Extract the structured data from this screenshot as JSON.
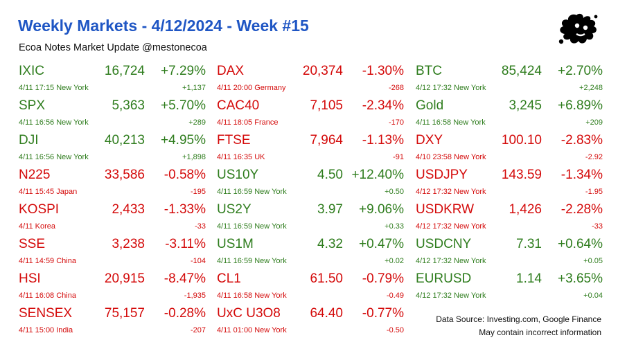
{
  "header": {
    "title": "Weekly Markets - 4/12/2024 - Week #15",
    "subtitle": "Ecoa Notes Market Update @mestonecoa"
  },
  "colors": {
    "up": "#2f7d1e",
    "down": "#d40a0a",
    "title": "#1f56c4"
  },
  "logo": {
    "icon": "ink-splat-icon"
  },
  "columns": [
    [
      {
        "ticker": "IXIC",
        "price": "16,724",
        "pct": "+7.29%",
        "meta": "4/11 17:15 New York",
        "chg": "+1,137",
        "dir": "up"
      },
      {
        "ticker": "SPX",
        "price": "5,363",
        "pct": "+5.70%",
        "meta": "4/11 16:56 New York",
        "chg": "+289",
        "dir": "up"
      },
      {
        "ticker": "DJI",
        "price": "40,213",
        "pct": "+4.95%",
        "meta": "4/11 16:56 New York",
        "chg": "+1,898",
        "dir": "up"
      },
      {
        "ticker": "N225",
        "price": "33,586",
        "pct": "-0.58%",
        "meta": "4/11 15:45 Japan",
        "chg": "-195",
        "dir": "down"
      },
      {
        "ticker": "KOSPI",
        "price": "2,433",
        "pct": "-1.33%",
        "meta": "4/11  Korea",
        "chg": "-33",
        "dir": "down"
      },
      {
        "ticker": "SSE",
        "price": "3,238",
        "pct": "-3.11%",
        "meta": "4/11 14:59 China",
        "chg": "-104",
        "dir": "down"
      },
      {
        "ticker": "HSI",
        "price": "20,915",
        "pct": "-8.47%",
        "meta": "4/11 16:08 China",
        "chg": "-1,935",
        "dir": "down"
      },
      {
        "ticker": "SENSEX",
        "price": "75,157",
        "pct": "-0.28%",
        "meta": "4/11 15:00 India",
        "chg": "-207",
        "dir": "down"
      }
    ],
    [
      {
        "ticker": "DAX",
        "price": "20,374",
        "pct": "-1.30%",
        "meta": "4/11 20:00 Germany",
        "chg": "-268",
        "dir": "down"
      },
      {
        "ticker": "CAC40",
        "price": "7,105",
        "pct": "-2.34%",
        "meta": "4/11 18:05 France",
        "chg": "-170",
        "dir": "down"
      },
      {
        "ticker": "FTSE",
        "price": "7,964",
        "pct": "-1.13%",
        "meta": "4/11 16:35 UK",
        "chg": "-91",
        "dir": "down"
      },
      {
        "ticker": "US10Y",
        "price": "4.50",
        "pct": "+12.40%",
        "meta": "4/11 16:59 New York",
        "chg": "+0.50",
        "dir": "up"
      },
      {
        "ticker": "US2Y",
        "price": "3.97",
        "pct": "+9.06%",
        "meta": "4/11 16:59 New York",
        "chg": "+0.33",
        "dir": "up"
      },
      {
        "ticker": "US1M",
        "price": "4.32",
        "pct": "+0.47%",
        "meta": "4/11 16:59 New York",
        "chg": "+0.02",
        "dir": "up"
      },
      {
        "ticker": "CL1",
        "price": "61.50",
        "pct": "-0.79%",
        "meta": "4/11 16:58 New York",
        "chg": "-0.49",
        "dir": "down"
      },
      {
        "ticker": "UxC U3O8",
        "price": "64.40",
        "pct": "-0.77%",
        "meta": "4/11 01:00 New York",
        "chg": "-0.50",
        "dir": "down"
      }
    ],
    [
      {
        "ticker": "BTC",
        "price": "85,424",
        "pct": "+2.70%",
        "meta": "4/12 17:32 New York",
        "chg": "+2,248",
        "dir": "up"
      },
      {
        "ticker": "Gold",
        "price": "3,245",
        "pct": "+6.89%",
        "meta": "4/11 16:58 New York",
        "chg": "+209",
        "dir": "up"
      },
      {
        "ticker": "DXY",
        "price": "100.10",
        "pct": "-2.83%",
        "meta": "4/10 23:58 New York",
        "chg": "-2.92",
        "dir": "down"
      },
      {
        "ticker": "USDJPY",
        "price": "143.59",
        "pct": "-1.34%",
        "meta": "4/12 17:32 New York",
        "chg": "-1.95",
        "dir": "down"
      },
      {
        "ticker": "USDKRW",
        "price": "1,426",
        "pct": "-2.28%",
        "meta": "4/12 17:32 New York",
        "chg": "-33",
        "dir": "down"
      },
      {
        "ticker": "USDCNY",
        "price": "7.31",
        "pct": "+0.64%",
        "meta": "4/12 17:32 New York",
        "chg": "+0.05",
        "dir": "up"
      },
      {
        "ticker": "EURUSD",
        "price": "1.14",
        "pct": "+3.65%",
        "meta": "4/12 17:32 New York",
        "chg": "+0.04",
        "dir": "up"
      }
    ]
  ],
  "footer": {
    "source": "Data Source: Investing.com, Google Finance",
    "disclaimer": "May contain incorrect information"
  }
}
